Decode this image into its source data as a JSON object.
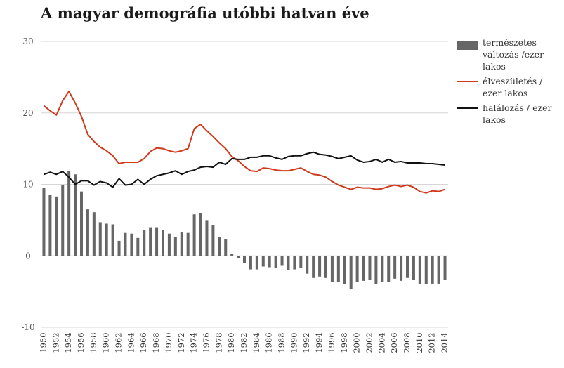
{
  "chart_data": {
    "type": "bar+line",
    "title": "A magyar demográfia utóbbi hatvan éve",
    "ylim": [
      -10,
      30
    ],
    "yticks": [
      "30",
      "20",
      "10",
      "0",
      "-10"
    ],
    "ytick_values": [
      30,
      20,
      10,
      0,
      -10
    ],
    "x": [
      1950,
      1951,
      1952,
      1953,
      1954,
      1955,
      1956,
      1957,
      1958,
      1959,
      1960,
      1961,
      1962,
      1963,
      1964,
      1965,
      1966,
      1967,
      1968,
      1969,
      1970,
      1971,
      1972,
      1973,
      1974,
      1975,
      1976,
      1977,
      1978,
      1979,
      1980,
      1981,
      1982,
      1983,
      1984,
      1985,
      1986,
      1987,
      1988,
      1989,
      1990,
      1991,
      1992,
      1993,
      1994,
      1995,
      1996,
      1997,
      1998,
      1999,
      2000,
      2001,
      2002,
      2003,
      2004,
      2005,
      2006,
      2007,
      2008,
      2009,
      2010,
      2011,
      2012,
      2013,
      2014
    ],
    "xtick_labels": [
      "1950",
      "1952",
      "1954",
      "1956",
      "1958",
      "1960",
      "1962",
      "1964",
      "1966",
      "1968",
      "1970",
      "1972",
      "1974",
      "1976",
      "1978",
      "1980",
      "1982",
      "1984",
      "1986",
      "1988",
      "1990",
      "1992",
      "1994",
      "1996",
      "1998",
      "2000",
      "2002",
      "2004",
      "2006",
      "2008",
      "2010",
      "2012",
      "2014"
    ],
    "grid": "horizontal",
    "legend_position": "right",
    "series": [
      {
        "name": "természetes változás /ezer lakos",
        "kind": "bar",
        "color": "#666666",
        "values": [
          9.5,
          8.5,
          8.3,
          9.9,
          11.9,
          11.4,
          9.0,
          6.5,
          6.1,
          4.7,
          4.5,
          4.4,
          2.1,
          3.2,
          3.1,
          2.5,
          3.6,
          4.0,
          4.0,
          3.6,
          3.1,
          2.6,
          3.3,
          3.2,
          5.8,
          6.0,
          5.0,
          4.3,
          2.6,
          2.3,
          0.3,
          -0.3,
          -1.0,
          -1.9,
          -1.9,
          -1.5,
          -1.6,
          -1.7,
          -1.4,
          -2.0,
          -1.9,
          -1.7,
          -2.5,
          -3.1,
          -2.9,
          -3.1,
          -3.7,
          -3.7,
          -4.0,
          -4.6,
          -3.7,
          -3.5,
          -3.4,
          -4.0,
          -3.7,
          -3.7,
          -3.2,
          -3.5,
          -3.1,
          -3.4,
          -4.0,
          -4.0,
          -3.9,
          -3.9,
          -3.4
        ]
      },
      {
        "name": "élveszületés / ezer lakos",
        "kind": "line",
        "color": "#d03a1c",
        "values": [
          21.0,
          20.3,
          19.7,
          21.7,
          23.0,
          21.4,
          19.5,
          17.0,
          16.0,
          15.2,
          14.7,
          14.0,
          12.9,
          13.1,
          13.1,
          13.1,
          13.6,
          14.6,
          15.1,
          15.0,
          14.7,
          14.5,
          14.7,
          15.0,
          17.8,
          18.4,
          17.5,
          16.7,
          15.8,
          15.0,
          13.9,
          13.3,
          12.5,
          11.9,
          11.8,
          12.3,
          12.2,
          12.0,
          11.9,
          11.9,
          12.1,
          12.3,
          11.8,
          11.4,
          11.3,
          11.0,
          10.4,
          9.9,
          9.6,
          9.3,
          9.6,
          9.5,
          9.5,
          9.3,
          9.4,
          9.7,
          9.9,
          9.7,
          9.9,
          9.6,
          9.0,
          8.8,
          9.1,
          9.0,
          9.3
        ]
      },
      {
        "name": "halálozás / ezer lakos",
        "kind": "line",
        "color": "#111111",
        "values": [
          11.4,
          11.7,
          11.4,
          11.8,
          11.0,
          10.0,
          10.5,
          10.5,
          9.9,
          10.4,
          10.2,
          9.6,
          10.8,
          9.9,
          10.0,
          10.7,
          10.0,
          10.7,
          11.2,
          11.4,
          11.6,
          11.9,
          11.4,
          11.8,
          12.0,
          12.4,
          12.5,
          12.4,
          13.1,
          12.8,
          13.6,
          13.5,
          13.5,
          13.8,
          13.8,
          14.0,
          14.0,
          13.7,
          13.5,
          13.9,
          14.0,
          14.0,
          14.3,
          14.5,
          14.2,
          14.1,
          13.9,
          13.6,
          13.8,
          14.0,
          13.4,
          13.1,
          13.2,
          13.5,
          13.1,
          13.5,
          13.1,
          13.2,
          13.0,
          13.0,
          13.0,
          12.9,
          12.9,
          12.8,
          12.7
        ]
      }
    ]
  }
}
